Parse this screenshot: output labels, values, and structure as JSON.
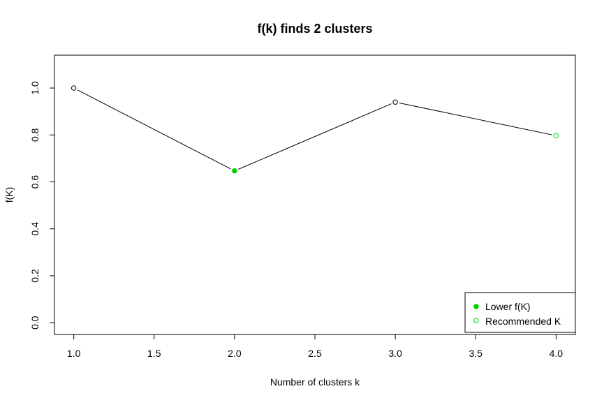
{
  "chart_data": {
    "type": "line",
    "title": "f(k) finds 2 clusters",
    "xlabel": "Number of clusters k",
    "ylabel": "f(K)",
    "xlim": [
      0.88,
      4.12
    ],
    "ylim": [
      -0.05,
      1.14
    ],
    "x_ticks": [
      1.0,
      1.5,
      2.0,
      2.5,
      3.0,
      3.5,
      4.0
    ],
    "x_tick_labels": [
      "1.0",
      "1.5",
      "2.0",
      "2.5",
      "3.0",
      "3.5",
      "4.0"
    ],
    "y_ticks": [
      0.0,
      0.2,
      0.4,
      0.6,
      0.8,
      1.0
    ],
    "y_tick_labels": [
      "0.0",
      "0.2",
      "0.4",
      "0.6",
      "0.8",
      "1.0"
    ],
    "grid": false,
    "legend_position": "bottom-right",
    "series": [
      {
        "x": [
          1,
          2,
          3,
          4
        ],
        "y": [
          1.0,
          0.647,
          0.94,
          0.797
        ],
        "line_color": "#000000",
        "marker_styles": [
          "open-black",
          "filled-green",
          "open-black",
          "open-green"
        ]
      }
    ],
    "legend": [
      {
        "label": "Lower f(K)",
        "marker": "filled-green"
      },
      {
        "label": "Recommended K",
        "marker": "open-green"
      }
    ],
    "colors": {
      "green": "#00cc00",
      "line": "#000000"
    }
  }
}
